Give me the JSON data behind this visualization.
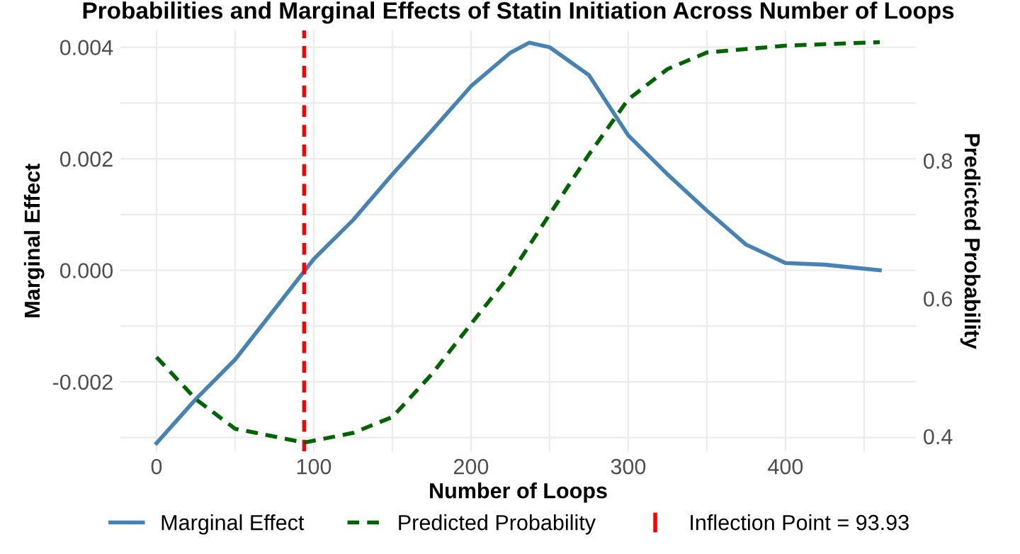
{
  "chart_data": {
    "type": "line",
    "title": "Probabilities and Marginal Effects of Statin Initiation Across Number of Loops",
    "xlabel": "Number of Loops",
    "ylabel": "Marginal Effect",
    "y2label": "Predicted Probability",
    "series": [
      {
        "name": "Marginal Effect",
        "color": "#4682b4",
        "line_style": "solid",
        "x": [
          0,
          25,
          50,
          100,
          125,
          150,
          175,
          200,
          225,
          237,
          250,
          275,
          300,
          325,
          350,
          375,
          400,
          425,
          460
        ],
        "values": [
          -0.0031,
          -0.00231,
          -0.0016,
          0.0002,
          0.0009,
          0.00172,
          0.0025,
          0.0033,
          0.0039,
          0.00408,
          0.004,
          0.0035,
          0.00242,
          0.00172,
          0.00107,
          0.00046,
          0.00013,
          0.0001,
          0.0
        ]
      },
      {
        "name": "Predicted Probability",
        "color": "#006400",
        "line_style": "dashed",
        "axis": "y2",
        "x": [
          0,
          25,
          50,
          94,
          125,
          150,
          175,
          200,
          225,
          250,
          275,
          300,
          325,
          350,
          400,
          460
        ],
        "values": [
          0.515,
          0.454,
          0.411,
          0.391,
          0.405,
          0.428,
          0.49,
          0.563,
          0.635,
          0.722,
          0.809,
          0.889,
          0.933,
          0.957,
          0.967,
          0.972
        ]
      }
    ],
    "ref_lines": [
      {
        "axis": "x",
        "value": 93.93,
        "label": "Inflection Point = 93.93",
        "color": "#ff0000",
        "line_style": "dashed"
      }
    ],
    "xlim": [
      -23,
      483
    ],
    "xticks": [
      0,
      {
        "value": 50,
        "label": null
      },
      100,
      {
        "value": 150,
        "label": null
      },
      200,
      {
        "value": 250,
        "label": null
      },
      300,
      {
        "value": 350,
        "label": null
      },
      400,
      {
        "value": 450,
        "label": null
      }
    ],
    "ylim": [
      -0.00325,
      0.0043
    ],
    "yticks": [
      {
        "value": -0.003,
        "label": null
      },
      -0.002,
      {
        "value": -0.001,
        "label": null
      },
      {
        "value": 0.0,
        "label": "0.000"
      },
      {
        "value": 0.001,
        "label": null
      },
      0.002,
      {
        "value": 0.003,
        "label": null
      },
      0.004
    ],
    "y2lim": [
      0.378,
      0.989
    ],
    "y2ticks": [
      0.4,
      0.6,
      0.8
    ],
    "grid": true,
    "legend": "bottom",
    "marker": "none"
  }
}
